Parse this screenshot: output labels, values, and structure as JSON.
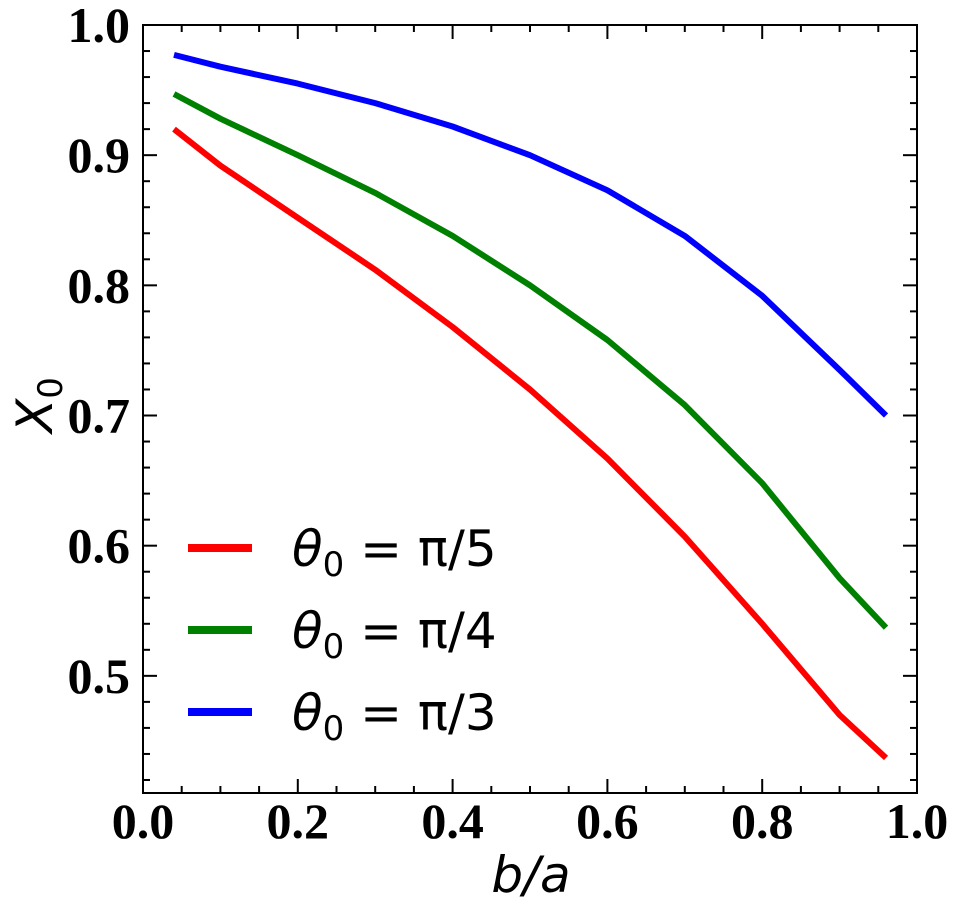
{
  "chart_data": {
    "type": "line",
    "xlabel": "b/a",
    "ylabel": "X",
    "ylabel_sub": "0",
    "xlim": [
      0.0,
      1.0
    ],
    "ylim": [
      0.41,
      1.0
    ],
    "xticks": [
      0.0,
      0.2,
      0.4,
      0.6,
      0.8,
      1.0
    ],
    "xtick_labels": [
      "0.0",
      "0.2",
      "0.4",
      "0.6",
      "0.8",
      "1.0"
    ],
    "yticks": [
      0.5,
      0.6,
      0.7,
      0.8,
      0.9,
      1.0
    ],
    "ytick_labels": [
      "0.5",
      "0.6",
      "0.7",
      "0.8",
      "0.9",
      "1.0"
    ],
    "x_minor_step": 0.05,
    "y_minor_step": 0.02,
    "grid": false,
    "legend_position": "lower-left",
    "series": [
      {
        "name_main": "θ",
        "name_sub": "0",
        "name_rest": " = π/5",
        "color": "#ff0000",
        "x": [
          0.04,
          0.1,
          0.2,
          0.3,
          0.4,
          0.5,
          0.6,
          0.7,
          0.8,
          0.9,
          0.96
        ],
        "y": [
          0.92,
          0.892,
          0.852,
          0.812,
          0.768,
          0.72,
          0.667,
          0.607,
          0.54,
          0.47,
          0.437
        ]
      },
      {
        "name_main": "θ",
        "name_sub": "0",
        "name_rest": " = π/4",
        "color": "#008000",
        "x": [
          0.04,
          0.1,
          0.2,
          0.3,
          0.4,
          0.5,
          0.6,
          0.7,
          0.8,
          0.9,
          0.96
        ],
        "y": [
          0.947,
          0.928,
          0.9,
          0.871,
          0.838,
          0.8,
          0.758,
          0.708,
          0.648,
          0.575,
          0.537
        ]
      },
      {
        "name_main": "θ",
        "name_sub": "0",
        "name_rest": " = π/3",
        "color": "#0000ff",
        "x": [
          0.04,
          0.1,
          0.2,
          0.3,
          0.4,
          0.5,
          0.6,
          0.7,
          0.8,
          0.9,
          0.96
        ],
        "y": [
          0.977,
          0.968,
          0.955,
          0.94,
          0.922,
          0.9,
          0.873,
          0.838,
          0.792,
          0.735,
          0.7
        ]
      }
    ]
  }
}
